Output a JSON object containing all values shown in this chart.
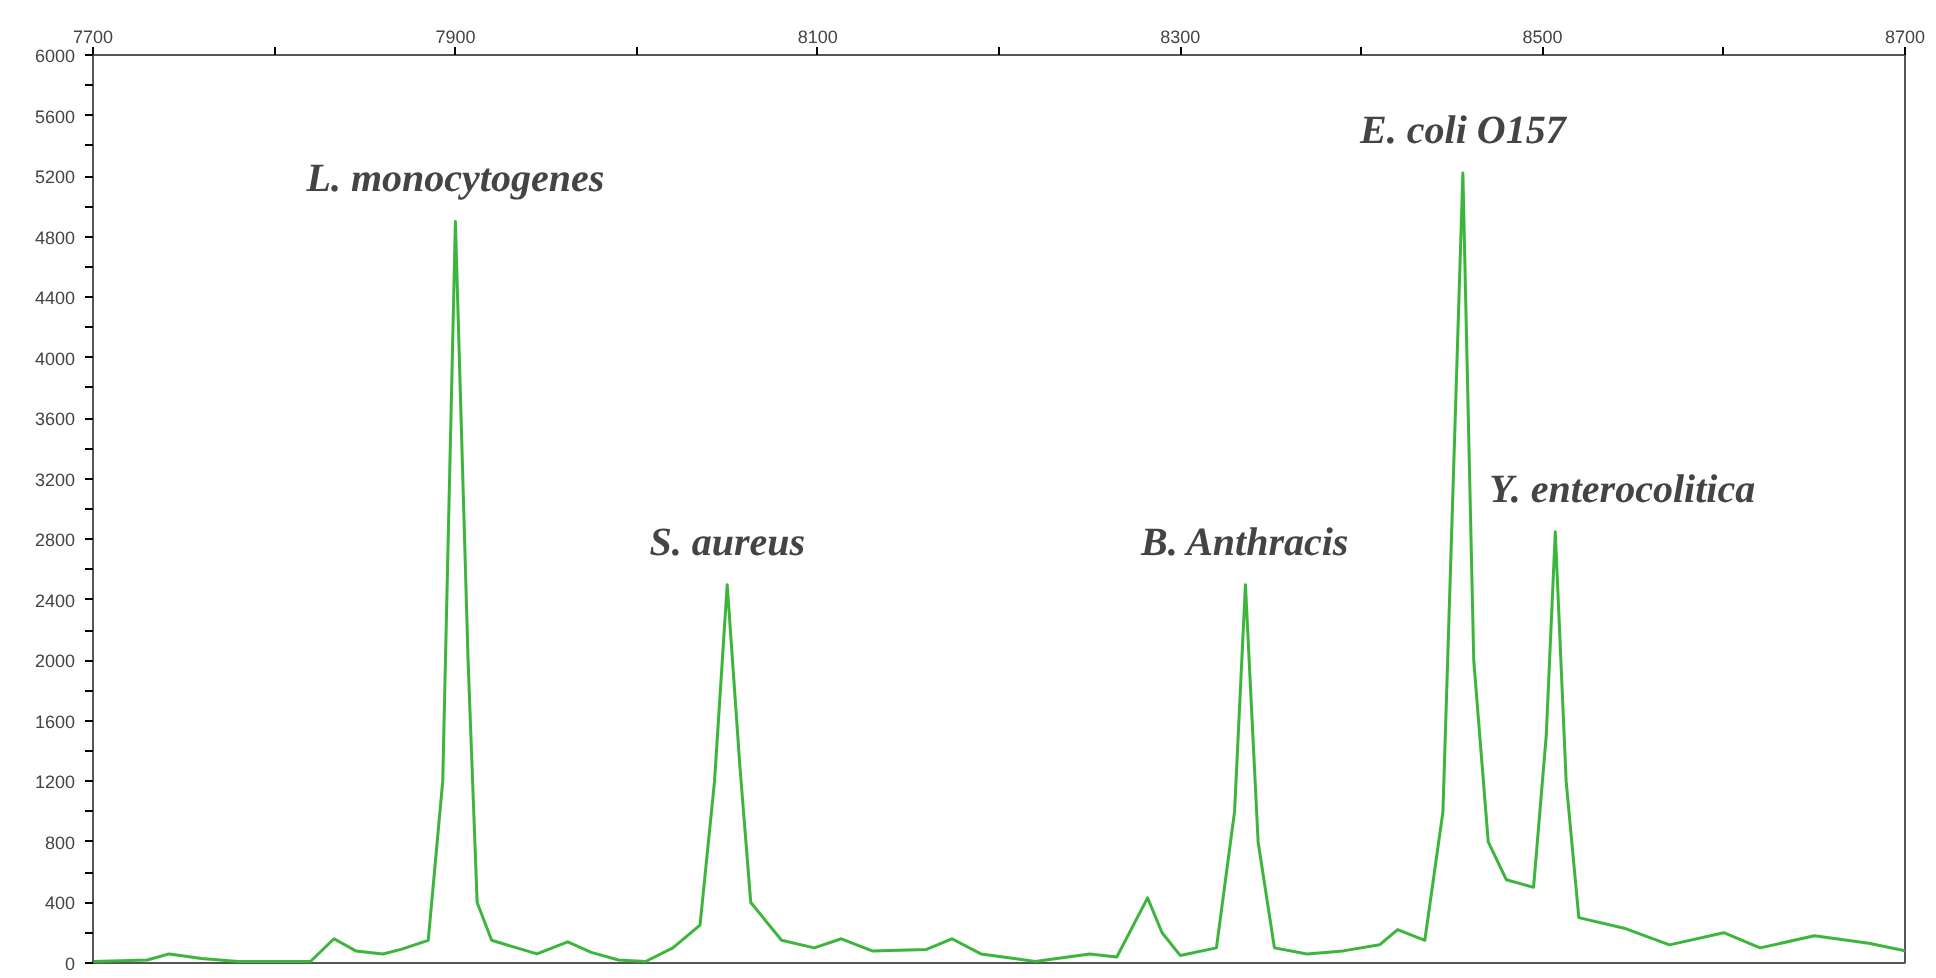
{
  "chart_data": {
    "type": "line",
    "x": [
      7700,
      7730,
      7742,
      7760,
      7780,
      7820,
      7833,
      7845,
      7860,
      7870,
      7885,
      7893,
      7900,
      7907,
      7912,
      7920,
      7945,
      7962,
      7975,
      7990,
      8005,
      8020,
      8035,
      8043,
      8050,
      8057,
      8063,
      8080,
      8098,
      8113,
      8130,
      8160,
      8174,
      8190,
      8220,
      8250,
      8265,
      8282,
      8290,
      8300,
      8320,
      8330,
      8336,
      8343,
      8352,
      8370,
      8390,
      8410,
      8420,
      8435,
      8445,
      8456,
      8462,
      8470,
      8480,
      8495,
      8502,
      8507,
      8513,
      8520,
      8545,
      8570,
      8600,
      8620,
      8650,
      8680,
      8700
    ],
    "series": [
      {
        "color": "#3cb53c",
        "values": [
          10,
          20,
          60,
          30,
          10,
          10,
          160,
          80,
          60,
          90,
          150,
          1200,
          4900,
          2000,
          400,
          150,
          60,
          140,
          70,
          20,
          10,
          100,
          250,
          1200,
          2500,
          1300,
          400,
          150,
          100,
          160,
          80,
          90,
          160,
          60,
          10,
          60,
          40,
          430,
          200,
          50,
          100,
          1000,
          2500,
          800,
          100,
          60,
          80,
          120,
          220,
          150,
          1000,
          5220,
          2000,
          800,
          550,
          500,
          1500,
          2850,
          1200,
          300,
          230,
          120,
          200,
          100,
          180,
          130,
          80
        ]
      }
    ],
    "xlim": [
      7700,
      8700
    ],
    "xticks": [
      7700,
      {
        "value": 7800,
        "label": null
      },
      7900,
      {
        "value": 8000,
        "label": null
      },
      8100,
      {
        "value": 8200,
        "label": null
      },
      8300,
      {
        "value": 8400,
        "label": null
      },
      8500,
      {
        "value": 8600,
        "label": null
      },
      8700
    ],
    "ylim": [
      0,
      6000
    ],
    "yticks": [
      0,
      {
        "value": 200,
        "label": null
      },
      400,
      {
        "value": 600,
        "label": null
      },
      800,
      {
        "value": 1000,
        "label": null
      },
      1200,
      {
        "value": 1400,
        "label": null
      },
      1600,
      {
        "value": 1800,
        "label": null
      },
      2000,
      {
        "value": 2200,
        "label": null
      },
      2400,
      {
        "value": 2600,
        "label": null
      },
      2800,
      {
        "value": 3000,
        "label": null
      },
      3200,
      {
        "value": 3400,
        "label": null
      },
      3600,
      {
        "value": 3800,
        "label": null
      },
      4000,
      {
        "value": 4200,
        "label": null
      },
      4400,
      {
        "value": 4600,
        "label": null
      },
      4800,
      {
        "value": 5000,
        "label": null
      },
      5200,
      {
        "value": 5400,
        "label": null
      },
      5600,
      {
        "value": 5800,
        "label": null
      },
      6000
    ],
    "annotations": [
      {
        "text": "L. monocytogenes",
        "x": 7900,
        "y": 4900
      },
      {
        "text": "S. aureus",
        "x": 8050,
        "y": 2500
      },
      {
        "text": "B. Anthracis",
        "x": 8336,
        "y": 2500
      },
      {
        "text": "E. coli O157",
        "x": 8456,
        "y": 5220
      },
      {
        "text": "Y. enterocolitica",
        "x": 8507,
        "y": 2850
      }
    ]
  }
}
